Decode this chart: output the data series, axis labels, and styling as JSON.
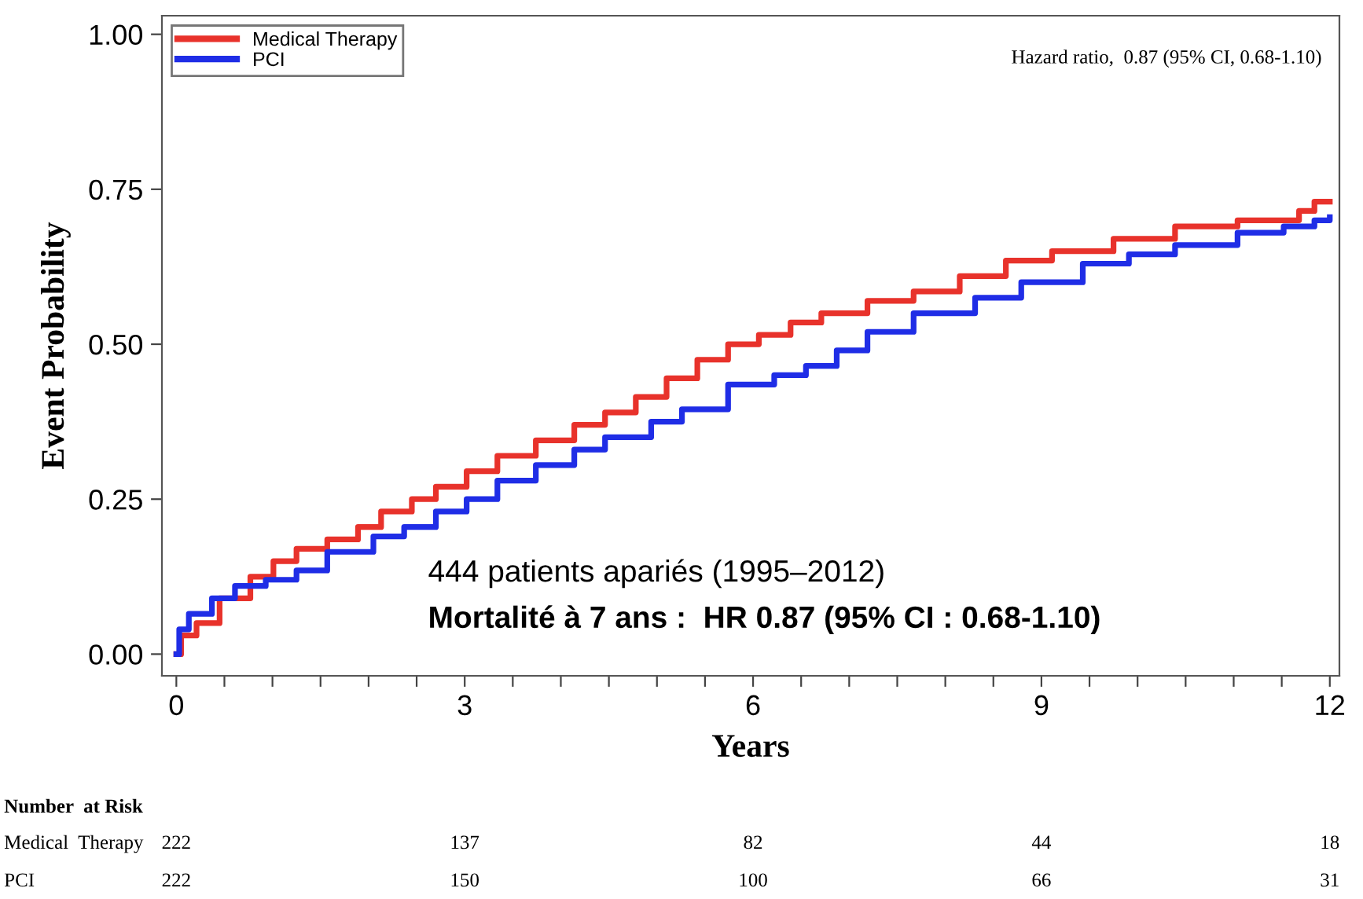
{
  "chart_data": {
    "type": "step",
    "xlabel": "Years",
    "ylabel": "Event Probability",
    "xlim": [
      -0.15,
      12.1
    ],
    "ylim": [
      -0.035,
      1.03
    ],
    "xticks": [
      0,
      {
        "value": 0.5,
        "label": null
      },
      {
        "value": 1,
        "label": null
      },
      {
        "value": 1.5,
        "label": null
      },
      {
        "value": 2,
        "label": null
      },
      {
        "value": 2.5,
        "label": null
      },
      3,
      {
        "value": 3.5,
        "label": null
      },
      {
        "value": 4,
        "label": null
      },
      {
        "value": 4.5,
        "label": null
      },
      {
        "value": 5,
        "label": null
      },
      {
        "value": 5.5,
        "label": null
      },
      6,
      {
        "value": 6.5,
        "label": null
      },
      {
        "value": 7,
        "label": null
      },
      {
        "value": 7.5,
        "label": null
      },
      {
        "value": 8,
        "label": null
      },
      {
        "value": 8.5,
        "label": null
      },
      9,
      {
        "value": 9.5,
        "label": null
      },
      {
        "value": 10,
        "label": null
      },
      {
        "value": 10.5,
        "label": null
      },
      {
        "value": 11,
        "label": null
      },
      {
        "value": 11.5,
        "label": null
      },
      12
    ],
    "yticks": [
      {
        "value": 0,
        "label": "0.00"
      },
      {
        "value": 0.25,
        "label": "0.25"
      },
      {
        "value": 0.5,
        "label": "0.50"
      },
      {
        "value": 0.75,
        "label": "0.75"
      },
      {
        "value": 1,
        "label": "1.00"
      }
    ],
    "grid": false,
    "legend": "top left",
    "line_style": "solid",
    "marker": "none",
    "series": [
      {
        "name": "Medical Therapy",
        "color": "#e8322b",
        "x": [
          0,
          0.05,
          0.21,
          0.45,
          0.77,
          1.01,
          1.25,
          1.57,
          1.89,
          2.13,
          2.45,
          2.7,
          3.02,
          3.34,
          3.74,
          4.14,
          4.46,
          4.78,
          5.1,
          5.42,
          5.74,
          6.06,
          6.39,
          6.71,
          7.19,
          7.67,
          8.15,
          8.63,
          9.11,
          9.75,
          10.39,
          11.04,
          11.68,
          11.84,
          12.0
        ],
        "values": [
          0,
          0.03,
          0.05,
          0.09,
          0.125,
          0.15,
          0.17,
          0.185,
          0.205,
          0.23,
          0.25,
          0.27,
          0.295,
          0.32,
          0.345,
          0.37,
          0.39,
          0.415,
          0.445,
          0.475,
          0.5,
          0.515,
          0.535,
          0.55,
          0.57,
          0.585,
          0.61,
          0.635,
          0.65,
          0.67,
          0.69,
          0.7,
          0.715,
          0.73,
          0.73
        ]
      },
      {
        "name": "PCI",
        "color": "#1f2de6",
        "x": [
          0,
          0.03,
          0.13,
          0.37,
          0.61,
          0.93,
          1.25,
          1.57,
          2.05,
          2.37,
          2.7,
          3.02,
          3.34,
          3.74,
          4.14,
          4.46,
          4.94,
          5.26,
          5.74,
          6.22,
          6.55,
          6.87,
          7.19,
          7.67,
          8.31,
          8.79,
          9.43,
          9.91,
          10.39,
          11.04,
          11.52,
          11.84,
          12.0
        ],
        "values": [
          0,
          0.04,
          0.065,
          0.09,
          0.11,
          0.12,
          0.135,
          0.165,
          0.19,
          0.205,
          0.23,
          0.25,
          0.28,
          0.305,
          0.33,
          0.35,
          0.375,
          0.395,
          0.435,
          0.45,
          0.465,
          0.49,
          0.52,
          0.55,
          0.575,
          0.6,
          0.63,
          0.645,
          0.66,
          0.68,
          0.69,
          0.7,
          0.705
        ]
      }
    ],
    "annotations": [
      "Hazard ratio,  0.87 (95% CI, 0.68-1.10)",
      "444 patients apariés (1995–2012)",
      "Mortalité à 7 ans :  HR 0.87 (95% CI : 0.68-1.10)",
      "Number  at Risk",
      "Medical  Therapy",
      "222",
      "137",
      "82",
      "44",
      "18",
      "PCI",
      "222",
      "150",
      "100",
      "66",
      "31"
    ]
  }
}
